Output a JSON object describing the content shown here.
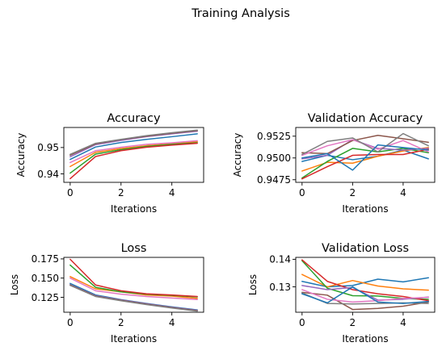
{
  "figure": {
    "title": "Training Analysis"
  },
  "palette": [
    "#1f77b4",
    "#ff7f0e",
    "#2ca02c",
    "#d62728",
    "#9467bd",
    "#8c564b",
    "#e377c2",
    "#7f7f7f"
  ],
  "chart_data": [
    {
      "type": "line",
      "title": "Accuracy",
      "xlabel": "Iterations",
      "ylabel": "Accuracy",
      "x": [
        0,
        1,
        2,
        3,
        4,
        5
      ],
      "xlim": [
        -0.25,
        5.25
      ],
      "ylim": [
        0.9368,
        0.9576
      ],
      "xticks": [
        0,
        2,
        4
      ],
      "yticks": [
        0.94,
        0.95
      ],
      "ytick_labels": [
        "0.94",
        "0.95"
      ],
      "grid": false,
      "series": [
        {
          "values": [
            0.9455,
            0.9502,
            0.9519,
            0.9531,
            0.9541,
            0.9552
          ]
        },
        {
          "values": [
            0.9428,
            0.9482,
            0.9496,
            0.9507,
            0.9514,
            0.9522
          ]
        },
        {
          "values": [
            0.9403,
            0.9475,
            0.9492,
            0.9504,
            0.9512,
            0.9518
          ]
        },
        {
          "values": [
            0.9382,
            0.9466,
            0.9488,
            0.9501,
            0.9509,
            0.9516
          ]
        },
        {
          "values": [
            0.9465,
            0.9511,
            0.9527,
            0.9541,
            0.9552,
            0.9562
          ]
        },
        {
          "values": [
            0.9471,
            0.9514,
            0.953,
            0.9543,
            0.9554,
            0.9564
          ]
        },
        {
          "values": [
            0.9443,
            0.9488,
            0.9501,
            0.9512,
            0.9518,
            0.9526
          ]
        },
        {
          "values": [
            0.9474,
            0.9516,
            0.9531,
            0.9545,
            0.9556,
            0.9566
          ]
        }
      ]
    },
    {
      "type": "line",
      "title": "Validation Accuracy",
      "xlabel": "Iterations",
      "ylabel": "Accuracy",
      "x": [
        0,
        1,
        2,
        3,
        4,
        5
      ],
      "xlim": [
        -0.25,
        5.25
      ],
      "ylim": [
        0.9472,
        0.9535
      ],
      "xticks": [
        0,
        2,
        4
      ],
      "yticks": [
        0.9475,
        0.95,
        0.9525
      ],
      "ytick_labels": [
        "0.9475",
        "0.9500",
        "0.9525"
      ],
      "grid": false,
      "series": [
        {
          "values": [
            0.9496,
            0.9503,
            0.9498,
            0.9502,
            0.9509,
            0.9499
          ]
        },
        {
          "values": [
            0.9485,
            0.9495,
            0.9494,
            0.9502,
            0.9508,
            0.9512
          ]
        },
        {
          "values": [
            0.9477,
            0.9496,
            0.9511,
            0.9507,
            0.9511,
            0.9506
          ]
        },
        {
          "values": [
            0.9476,
            0.949,
            0.9503,
            0.9504,
            0.9504,
            0.951
          ]
        },
        {
          "values": [
            0.9499,
            0.9503,
            0.9521,
            0.9511,
            0.9509,
            0.9511
          ]
        },
        {
          "values": [
            0.9506,
            0.9505,
            0.952,
            0.9526,
            0.9522,
            0.9518
          ]
        },
        {
          "values": [
            0.9503,
            0.9514,
            0.9521,
            0.951,
            0.952,
            0.9507
          ]
        },
        {
          "values": [
            0.9504,
            0.9519,
            0.9523,
            0.9507,
            0.9528,
            0.9514
          ]
        },
        {
          "values": [
            0.95,
            0.9505,
            0.9486,
            0.9515,
            0.9512,
            0.9509
          ]
        }
      ]
    },
    {
      "type": "line",
      "title": "Loss",
      "xlabel": "Iterations",
      "ylabel": "Loss",
      "x": [
        0,
        1,
        2,
        3,
        4,
        5
      ],
      "xlim": [
        -0.25,
        5.25
      ],
      "ylim": [
        0.1055,
        0.177
      ],
      "xticks": [
        0,
        2,
        4
      ],
      "yticks": [
        0.125,
        0.15,
        0.175
      ],
      "ytick_labels": [
        "0.125",
        "0.150",
        "0.175"
      ],
      "grid": false,
      "series": [
        {
          "values": [
            0.143,
            0.128,
            0.122,
            0.117,
            0.1125,
            0.1085
          ]
        },
        {
          "values": [
            0.152,
            0.136,
            0.132,
            0.128,
            0.1265,
            0.1235
          ]
        },
        {
          "values": [
            0.167,
            0.138,
            0.132,
            0.129,
            0.1275,
            0.1255
          ]
        },
        {
          "values": [
            0.1745,
            0.141,
            0.1335,
            0.1295,
            0.128,
            0.126
          ]
        },
        {
          "values": [
            0.1415,
            0.127,
            0.1215,
            0.1165,
            0.112,
            0.108
          ]
        },
        {
          "values": [
            0.141,
            0.1265,
            0.121,
            0.116,
            0.1115,
            0.1075
          ]
        },
        {
          "values": [
            0.15,
            0.1335,
            0.129,
            0.126,
            0.124,
            0.122
          ]
        },
        {
          "values": [
            0.1405,
            0.126,
            0.1205,
            0.1155,
            0.111,
            0.107
          ]
        }
      ]
    },
    {
      "type": "line",
      "title": "Validation Loss",
      "xlabel": "Iterations",
      "ylabel": "Loss",
      "x": [
        0,
        1,
        2,
        3,
        4,
        5
      ],
      "xlim": [
        -0.25,
        5.25
      ],
      "ylim": [
        0.1208,
        0.1407
      ],
      "xticks": [
        0,
        2,
        4
      ],
      "yticks": [
        0.13,
        0.14
      ],
      "ytick_labels": [
        "0.13",
        "0.14"
      ],
      "grid": false,
      "series": [
        {
          "values": [
            0.132,
            0.13,
            0.1305,
            0.1328,
            0.1318,
            0.1333
          ]
        },
        {
          "values": [
            0.1345,
            0.13,
            0.1323,
            0.1303,
            0.1293,
            0.1288
          ]
        },
        {
          "values": [
            0.1395,
            0.1295,
            0.1268,
            0.1267,
            0.1258,
            0.1255
          ]
        },
        {
          "values": [
            0.1398,
            0.132,
            0.129,
            0.1275,
            0.1265,
            0.125
          ]
        },
        {
          "values": [
            0.1305,
            0.129,
            0.1298,
            0.1252,
            0.1255,
            0.1263
          ]
        },
        {
          "values": [
            0.128,
            0.127,
            0.1218,
            0.1222,
            0.123,
            0.1245
          ]
        },
        {
          "values": [
            0.129,
            0.1255,
            0.1245,
            0.125,
            0.1258,
            0.1262
          ]
        },
        {
          "values": [
            0.1278,
            0.124,
            0.1238,
            0.124,
            0.1242,
            0.124
          ]
        },
        {
          "values": [
            0.1275,
            0.1242,
            0.13,
            0.1245,
            0.124,
            0.1247
          ]
        }
      ]
    }
  ]
}
